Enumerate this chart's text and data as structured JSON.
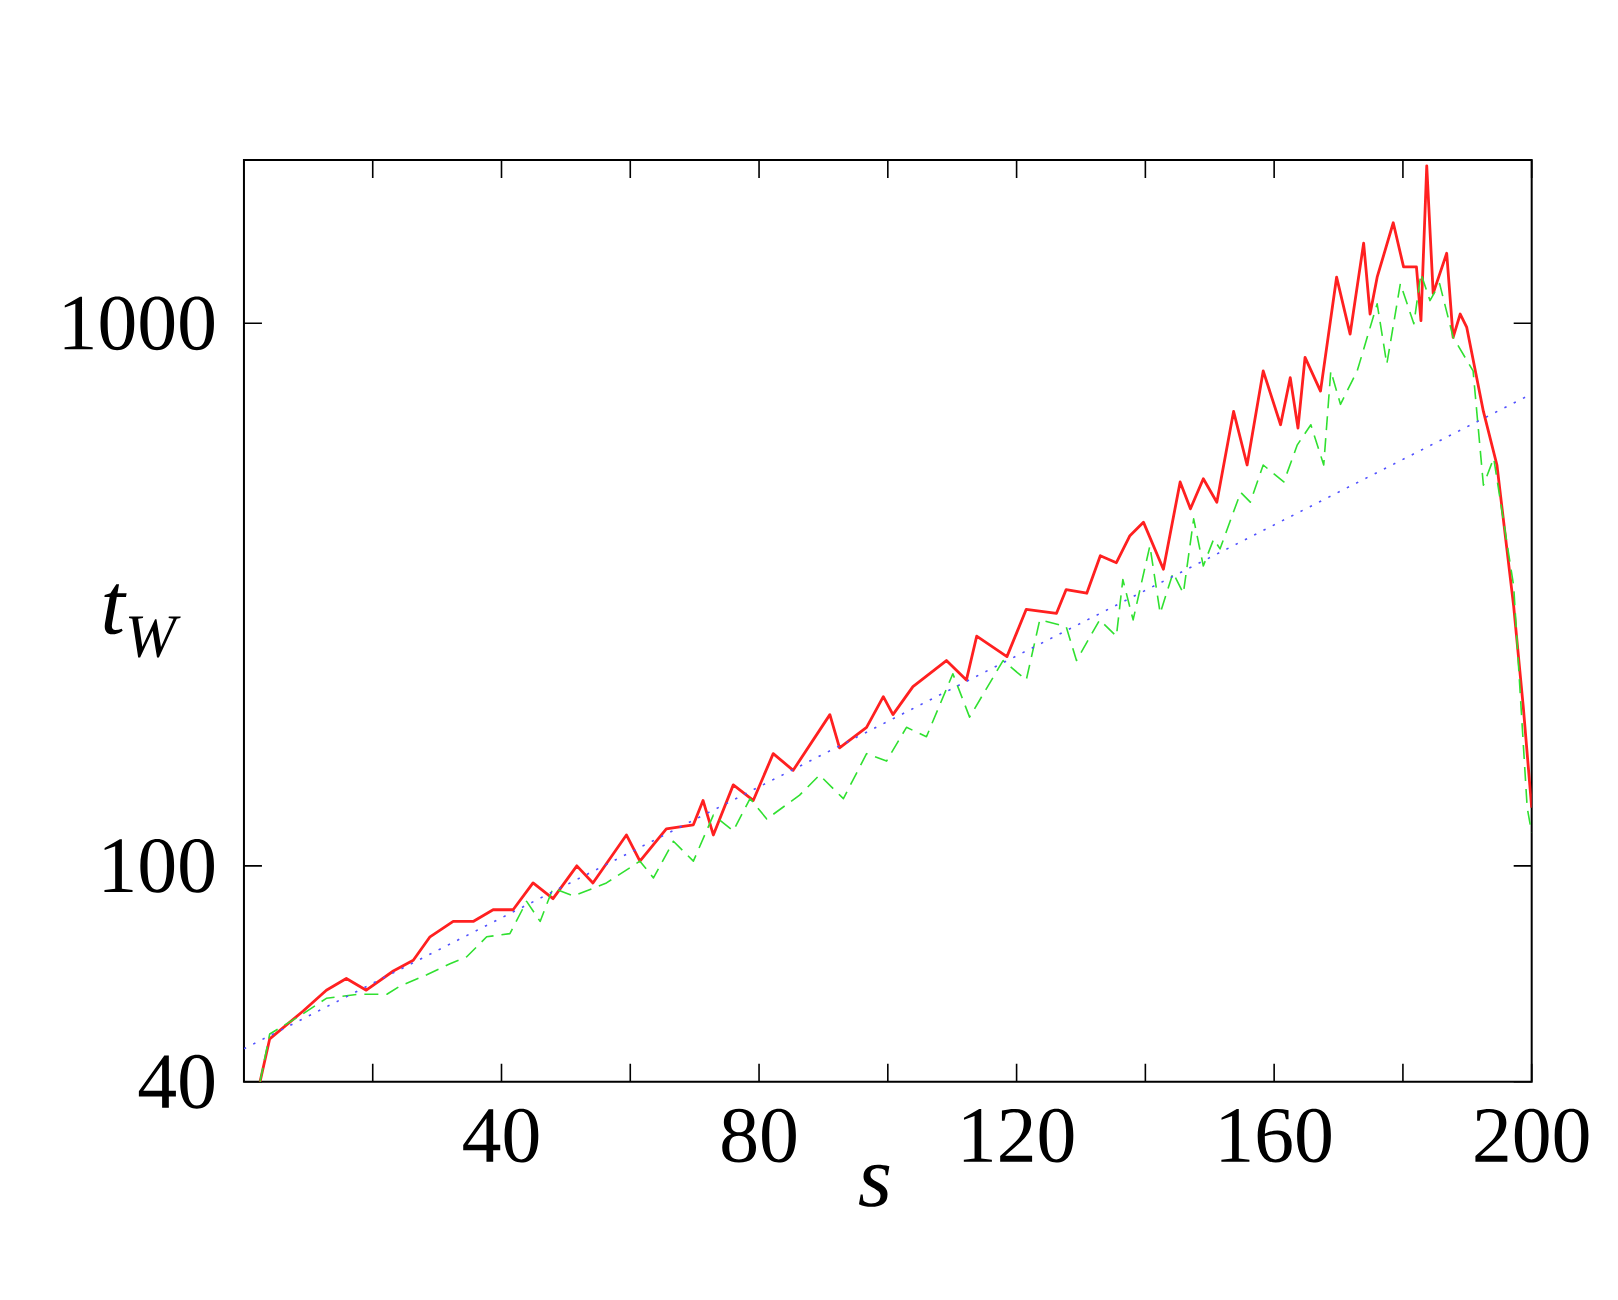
{
  "chart_data": {
    "type": "line",
    "xlabel": "s",
    "ylabel": "t$_{W}$",
    "log": "y",
    "xlim": [
      0,
      200
    ],
    "ylim": [
      40,
      2000
    ],
    "xticks": [
      {
        "value": 20,
        "label": null
      },
      40,
      {
        "value": 60,
        "label": null
      },
      80,
      {
        "value": 100,
        "label": null
      },
      120,
      {
        "value": 140,
        "label": null
      },
      160,
      {
        "value": 180,
        "label": null
      },
      200
    ],
    "yticks": [
      40,
      100,
      1000
    ],
    "series": [
      {
        "color": "#ff2020",
        "line_style": "solid",
        "x": [
          2.5,
          4.0,
          9.2,
          12.8,
          15.9,
          19.0,
          23.2,
          26.3,
          28.9,
          32.5,
          35.6,
          38.7,
          41.8,
          44.9,
          48.0,
          51.7,
          54.2,
          59.4,
          61.5,
          65.6,
          69.8,
          71.3,
          72.9,
          76.0,
          79.1,
          82.2,
          85.3,
          91.0,
          92.5,
          96.7,
          99.3,
          100.8,
          103.9,
          109.1,
          112.2,
          113.8,
          118.5,
          121.5,
          126.2,
          127.7,
          130.9,
          133.0,
          135.5,
          137.6,
          139.7,
          142.8,
          145.4,
          147.0,
          149.0,
          151.1,
          153.7,
          155.8,
          158.3,
          161.0,
          162.5,
          163.7,
          164.8,
          167.2,
          169.7,
          171.8,
          173.9,
          174.9,
          176.0,
          178.5,
          180.1,
          182.1,
          182.8,
          183.7,
          184.7,
          186.8,
          187.8,
          188.9,
          189.9,
          192.5,
          194.6,
          197.2,
          198.7,
          200
        ],
        "values": [
          40,
          48,
          54,
          59,
          62,
          59,
          64,
          67,
          74,
          79,
          79,
          83,
          83,
          93,
          87,
          100,
          93,
          114,
          102,
          117,
          119,
          132,
          114,
          141,
          132,
          161,
          150,
          190,
          165,
          180,
          205,
          190,
          214,
          239,
          220,
          265,
          243,
          297,
          292,
          323,
          318,
          373,
          362,
          406,
          430,
          352,
          510,
          455,
          517,
          468,
          688,
          548,
          817,
          650,
          794,
          641,
          865,
          750,
          1216,
          955,
          1405,
          1040,
          1216,
          1532,
          1270,
          1270,
          1011,
          1950,
          1135,
          1346,
          942,
          1040,
          984,
          688,
          548,
          301,
          196,
          128
        ]
      },
      {
        "color": "#30e030",
        "line_style": "dashed",
        "x": [
          2.5,
          4.0,
          8.8,
          12.8,
          17.9,
          22.2,
          24.2,
          28.4,
          32.0,
          34.6,
          37.7,
          41.3,
          43.9,
          46.0,
          48.0,
          51.2,
          56.3,
          61.5,
          63.6,
          66.7,
          69.8,
          72.9,
          76.0,
          78.6,
          81.2,
          86.3,
          89.4,
          93.1,
          96.7,
          99.8,
          102.9,
          106.0,
          110.1,
          112.7,
          117.9,
          121.5,
          123.6,
          127.7,
          129.3,
          132.9,
          135.5,
          136.5,
          138.1,
          140.7,
          142.3,
          144.3,
          145.9,
          147.5,
          149.0,
          150.6,
          151.6,
          154.8,
          156.3,
          158.3,
          161.5,
          163.6,
          165.7,
          167.7,
          168.8,
          170.3,
          172.9,
          176.0,
          177.5,
          179.6,
          181.7,
          182.8,
          184.2,
          185.7,
          187.8,
          190.9,
          192.5,
          194.1,
          197.2,
          199.3,
          200
        ],
        "values": [
          40,
          49,
          53,
          57,
          58,
          58,
          60,
          63,
          66,
          68,
          74,
          75,
          86,
          79,
          91,
          88,
          93,
          102,
          95,
          111,
          102,
          124,
          116,
          133,
          122,
          135,
          147,
          133,
          161,
          156,
          180,
          173,
          226,
          188,
          239,
          220,
          284,
          276,
          239,
          284,
          265,
          337,
          284,
          389,
          292,
          347,
          318,
          436,
          357,
          400,
          384,
          488,
          468,
          548,
          510,
          597,
          650,
          548,
          817,
          709,
          817,
          1086,
          841,
          1183,
          998,
          1235,
          1101,
          1183,
          942,
          817,
          503,
          564,
          328,
          128,
          115
        ]
      },
      {
        "color": "#5050ff",
        "line_style": "dotted",
        "x": [
          0,
          200
        ],
        "values": [
          46,
          741
        ]
      }
    ]
  }
}
